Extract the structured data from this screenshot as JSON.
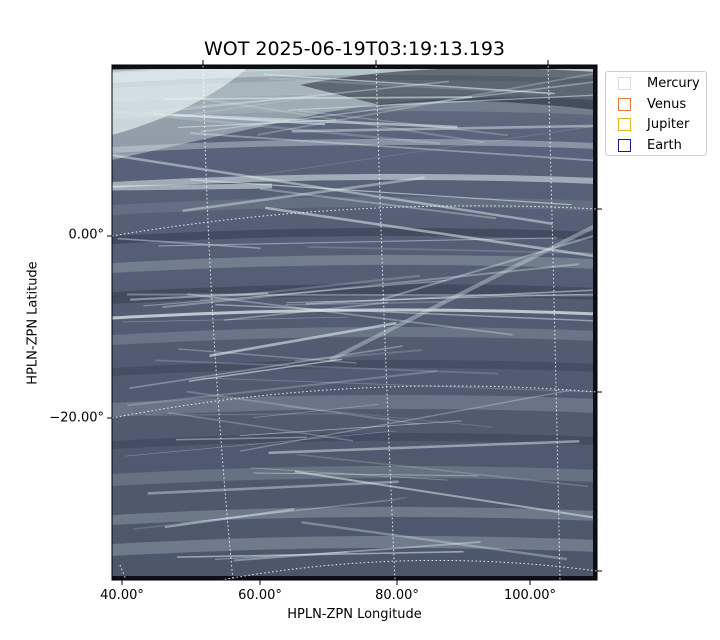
{
  "chart_data": {
    "type": "heatmap",
    "title": "WOT 2025-06-19T03:19:13.193",
    "xlabel": "HPLN-ZPN Longitude",
    "ylabel": "HPLN-ZPN Latitude",
    "x_ticks": [
      "40.00°",
      "60.00°",
      "80.00°",
      "100.00°"
    ],
    "y_ticks": [
      "0.00°",
      "−20.00°"
    ],
    "x_tick_values": [
      40,
      60,
      80,
      100
    ],
    "y_tick_values": [
      0,
      -20
    ],
    "grid": "on (dotted, curved coordinate grid)",
    "colormap": "bone (dark slate to pale cyan-white)",
    "legend": {
      "placement": "outside-top-right",
      "entries": [
        {
          "name": "Mercury",
          "color": "#d9d9d9"
        },
        {
          "name": "Venus",
          "color": "#e07b39"
        },
        {
          "name": "Jupiter",
          "color": "#e8b020"
        },
        {
          "name": "Earth",
          "color": "#1a1a80"
        }
      ]
    }
  }
}
